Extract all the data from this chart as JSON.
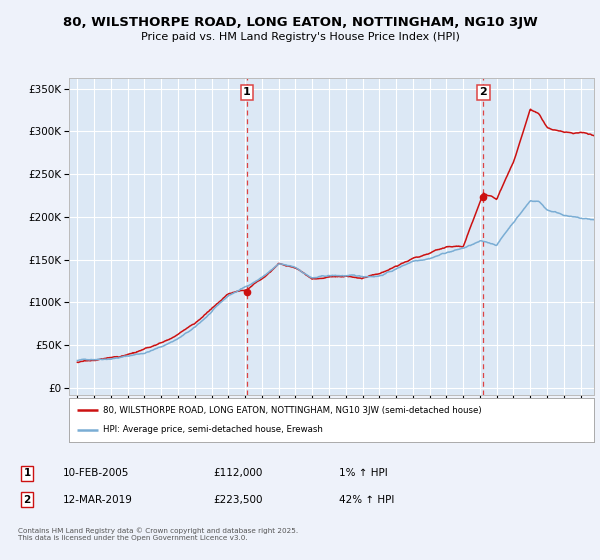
{
  "title": "80, WILSTHORPE ROAD, LONG EATON, NOTTINGHAM, NG10 3JW",
  "subtitle": "Price paid vs. HM Land Registry's House Price Index (HPI)",
  "background_color": "#eef2fa",
  "plot_bg_color": "#dce8f5",
  "grid_color": "#ffffff",
  "sale1_year": 2005.11,
  "sale2_year": 2019.21,
  "sale1_price": 112000,
  "sale2_price": 223500,
  "yticks": [
    0,
    50000,
    100000,
    150000,
    200000,
    250000,
    300000,
    350000
  ],
  "ytick_labels": [
    "£0",
    "£50K",
    "£100K",
    "£150K",
    "£200K",
    "£250K",
    "£300K",
    "£350K"
  ],
  "ylim_min": -8000,
  "ylim_max": 362000,
  "xlim_start": 1994.5,
  "xlim_end": 2025.8,
  "hpi_line_color": "#7aadd4",
  "price_line_color": "#cc1111",
  "vline_color": "#dd4444",
  "legend_label_red": "80, WILSTHORPE ROAD, LONG EATON, NOTTINGHAM, NG10 3JW (semi-detached house)",
  "legend_label_blue": "HPI: Average price, semi-detached house, Erewash",
  "footer": "Contains HM Land Registry data © Crown copyright and database right 2025.\nThis data is licensed under the Open Government Licence v3.0.",
  "sale1_date_str": "10-FEB-2005",
  "sale2_date_str": "12-MAR-2019",
  "sale1_price_str": "£112,000",
  "sale2_price_str": "£223,500",
  "sale1_hpi_str": "1% ↑ HPI",
  "sale2_hpi_str": "42% ↑ HPI",
  "hpi_keypoints_x": [
    1995.0,
    1996.0,
    1997.0,
    1998.0,
    1999.0,
    2000.0,
    2001.0,
    2002.0,
    2003.0,
    2004.0,
    2005.0,
    2006.0,
    2007.0,
    2008.0,
    2009.0,
    2010.0,
    2011.0,
    2012.0,
    2013.0,
    2014.0,
    2015.0,
    2016.0,
    2017.0,
    2018.0,
    2019.0,
    2020.0,
    2021.0,
    2022.0,
    2022.5,
    2023.0,
    2024.0,
    2025.0,
    2025.8
  ],
  "hpi_keypoints_y": [
    32000,
    34000,
    36000,
    39000,
    43000,
    50000,
    60000,
    72000,
    90000,
    108000,
    118000,
    130000,
    145000,
    140000,
    128000,
    130000,
    130000,
    128000,
    130000,
    138000,
    148000,
    153000,
    160000,
    165000,
    172000,
    168000,
    195000,
    220000,
    220000,
    210000,
    205000,
    200000,
    198000
  ],
  "price_keypoints_x": [
    1995.0,
    1996.0,
    1997.0,
    1998.0,
    1999.0,
    2000.0,
    2001.0,
    2002.0,
    2003.0,
    2004.0,
    2005.11,
    2006.0,
    2007.0,
    2008.0,
    2009.0,
    2010.0,
    2011.0,
    2012.0,
    2013.0,
    2014.0,
    2015.0,
    2016.0,
    2017.0,
    2018.0,
    2019.21,
    2020.0,
    2021.0,
    2022.0,
    2022.5,
    2023.0,
    2024.0,
    2025.0,
    2025.8
  ],
  "price_keypoints_y": [
    30000,
    32000,
    35000,
    38000,
    43000,
    50000,
    60000,
    73000,
    90000,
    107000,
    112000,
    126000,
    145000,
    140000,
    128000,
    130000,
    130000,
    128000,
    132000,
    140000,
    150000,
    155000,
    162000,
    162000,
    223500,
    215000,
    260000,
    320000,
    315000,
    300000,
    295000,
    295000,
    292000
  ]
}
